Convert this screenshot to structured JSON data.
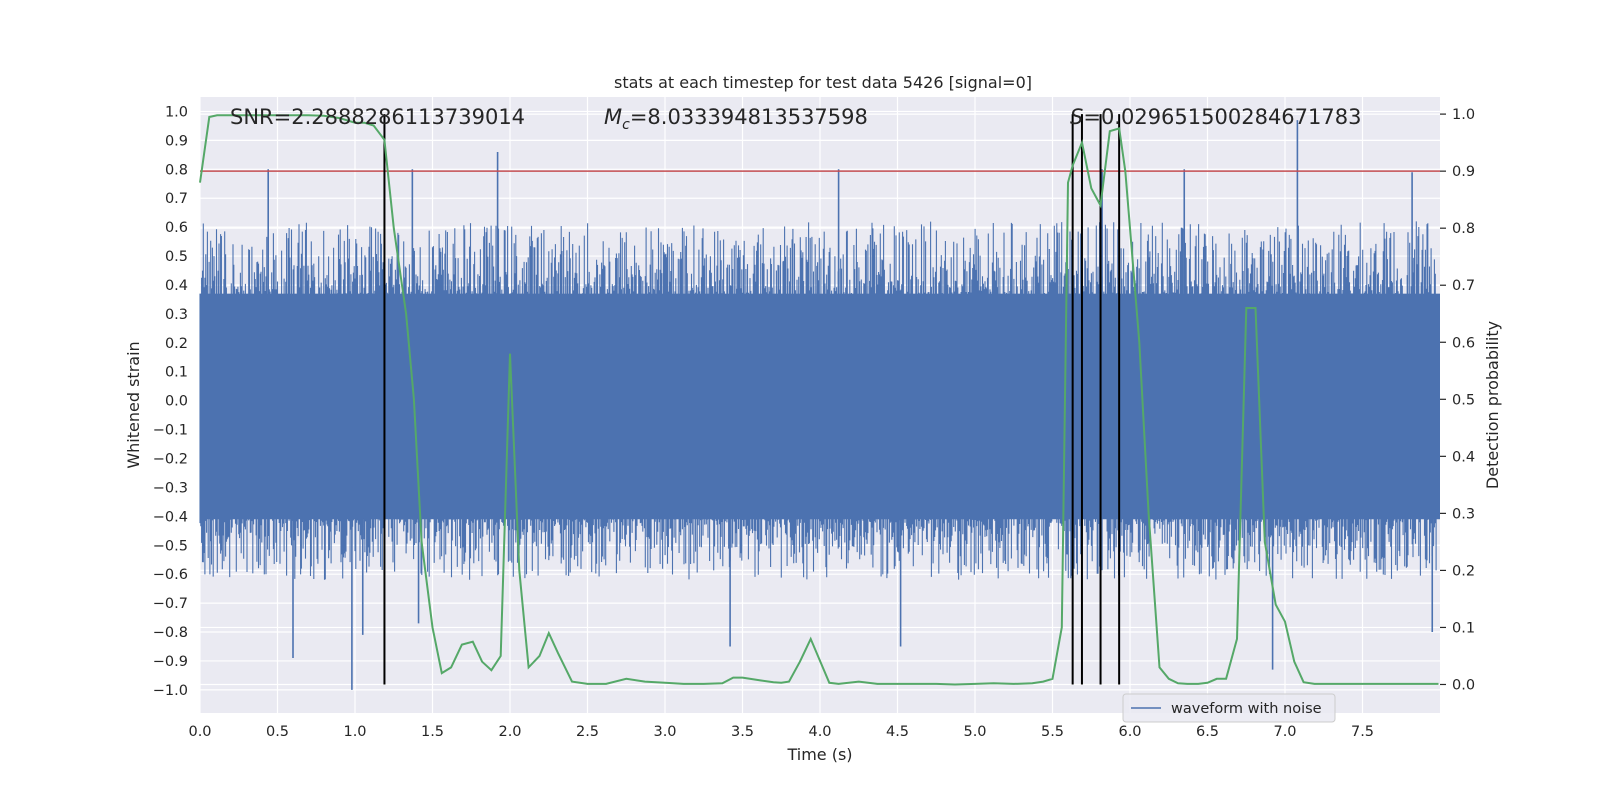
{
  "chart_data": {
    "type": "line",
    "title": "stats at each timestep for test data 5426 [signal=0]",
    "xlabel": "Time (s)",
    "ylabel_left": "Whitened strain",
    "ylabel_right": "Detection probability",
    "xlim": [
      0.0,
      8.0
    ],
    "ylim_left": [
      -1.08,
      1.05
    ],
    "ylim_right": [
      -0.05,
      1.03
    ],
    "x_ticks": [
      "0.0",
      "0.5",
      "1.0",
      "1.5",
      "2.0",
      "2.5",
      "3.0",
      "3.5",
      "4.0",
      "4.5",
      "5.0",
      "5.5",
      "6.0",
      "6.5",
      "7.0",
      "7.5"
    ],
    "x_tick_values": [
      0,
      0.5,
      1,
      1.5,
      2,
      2.5,
      3,
      3.5,
      4,
      4.5,
      5,
      5.5,
      6,
      6.5,
      7,
      7.5
    ],
    "y_ticks_left": [
      "1.0",
      "0.9",
      "0.8",
      "0.7",
      "0.6",
      "0.5",
      "0.4",
      "0.3",
      "0.2",
      "0.1",
      "0.0",
      "−0.1",
      "−0.2",
      "−0.3",
      "−0.4",
      "−0.5",
      "−0.6",
      "−0.7",
      "−0.8",
      "−0.9",
      "−1.0"
    ],
    "y_tick_values_left": [
      1.0,
      0.9,
      0.8,
      0.7,
      0.6,
      0.5,
      0.4,
      0.3,
      0.2,
      0.1,
      0.0,
      -0.1,
      -0.2,
      -0.3,
      -0.4,
      -0.5,
      -0.6,
      -0.7,
      -0.8,
      -0.9,
      -1.0
    ],
    "y_ticks_right": [
      "1.0",
      "0.9",
      "0.8",
      "0.7",
      "0.6",
      "0.5",
      "0.4",
      "0.3",
      "0.2",
      "0.1",
      "0.0"
    ],
    "y_tick_values_right": [
      1.0,
      0.9,
      0.8,
      0.7,
      0.6,
      0.5,
      0.4,
      0.3,
      0.2,
      0.1,
      0.0
    ],
    "annotations": {
      "snr": "SNR=2.2888286113739014",
      "mc_symbol": "M",
      "mc_sub": "c",
      "mc_value": "=8.033394813537598",
      "s_symbol": "S",
      "s_value": "=0.029651500284671783"
    },
    "threshold": 0.9,
    "vertical_lines": [
      1.19,
      5.63,
      5.69,
      5.81,
      5.93
    ],
    "waveform": {
      "name": "waveform with noise",
      "color": "#4c72b0",
      "envelope_positive": 0.62,
      "envelope_negative": -0.62,
      "spikes_positive": [
        [
          0.44,
          0.8
        ],
        [
          1.37,
          0.8
        ],
        [
          1.92,
          0.86
        ],
        [
          4.12,
          0.8
        ],
        [
          5.82,
          0.8
        ],
        [
          6.35,
          0.8
        ],
        [
          7.08,
          0.97
        ],
        [
          7.82,
          0.79
        ]
      ],
      "spikes_negative": [
        [
          0.6,
          -0.89
        ],
        [
          0.98,
          -1.0
        ],
        [
          1.05,
          -0.81
        ],
        [
          1.41,
          -0.77
        ],
        [
          3.42,
          -0.85
        ],
        [
          4.52,
          -0.85
        ],
        [
          6.92,
          -0.93
        ],
        [
          7.95,
          -0.8
        ]
      ]
    },
    "detection_probability": {
      "color": "#55a868",
      "x": [
        0.0,
        0.06,
        0.11,
        0.2,
        0.3,
        0.4,
        0.5,
        0.6,
        0.7,
        0.8,
        0.9,
        1.0,
        1.06,
        1.12,
        1.19,
        1.25,
        1.33,
        1.38,
        1.43,
        1.5,
        1.56,
        1.62,
        1.69,
        1.76,
        1.82,
        1.88,
        1.94,
        2.0,
        2.06,
        2.12,
        2.19,
        2.25,
        2.31,
        2.4,
        2.5,
        2.62,
        2.75,
        2.87,
        3.0,
        3.12,
        3.25,
        3.37,
        3.44,
        3.5,
        3.62,
        3.7,
        3.75,
        3.8,
        3.87,
        3.94,
        4.06,
        4.12,
        4.25,
        4.37,
        4.5,
        4.62,
        4.75,
        4.87,
        5.0,
        5.12,
        5.25,
        5.37,
        5.44,
        5.5,
        5.56,
        5.6,
        5.63,
        5.69,
        5.75,
        5.81,
        5.87,
        5.93,
        5.97,
        6.0,
        6.06,
        6.12,
        6.19,
        6.25,
        6.31,
        6.37,
        6.44,
        6.5,
        6.56,
        6.62,
        6.69,
        6.75,
        6.81,
        6.87,
        6.94,
        7.0,
        7.06,
        7.12,
        7.19,
        7.3,
        7.4,
        7.5,
        7.62,
        7.75,
        7.87,
        7.99
      ],
      "y": [
        0.88,
        0.995,
        0.998,
        0.998,
        0.998,
        0.998,
        0.998,
        0.998,
        0.998,
        0.997,
        0.993,
        0.985,
        0.985,
        0.98,
        0.955,
        0.8,
        0.65,
        0.5,
        0.25,
        0.1,
        0.02,
        0.03,
        0.07,
        0.075,
        0.04,
        0.025,
        0.05,
        0.58,
        0.2,
        0.03,
        0.05,
        0.09,
        0.055,
        0.005,
        0.001,
        0.001,
        0.01,
        0.005,
        0.003,
        0.001,
        0.001,
        0.002,
        0.012,
        0.012,
        0.007,
        0.004,
        0.003,
        0.005,
        0.04,
        0.08,
        0.003,
        0.001,
        0.005,
        0.001,
        0.001,
        0.001,
        0.001,
        0.0,
        0.001,
        0.002,
        0.001,
        0.002,
        0.005,
        0.01,
        0.1,
        0.88,
        0.91,
        0.95,
        0.87,
        0.84,
        0.97,
        0.975,
        0.9,
        0.8,
        0.6,
        0.3,
        0.03,
        0.01,
        0.002,
        0.001,
        0.001,
        0.003,
        0.01,
        0.01,
        0.08,
        0.66,
        0.66,
        0.25,
        0.14,
        0.11,
        0.04,
        0.004,
        0.001,
        0.001,
        0.001,
        0.001,
        0.001,
        0.001,
        0.001,
        0.001
      ]
    },
    "legend": {
      "placement": "lower-right",
      "entries": [
        "waveform with noise"
      ]
    }
  }
}
